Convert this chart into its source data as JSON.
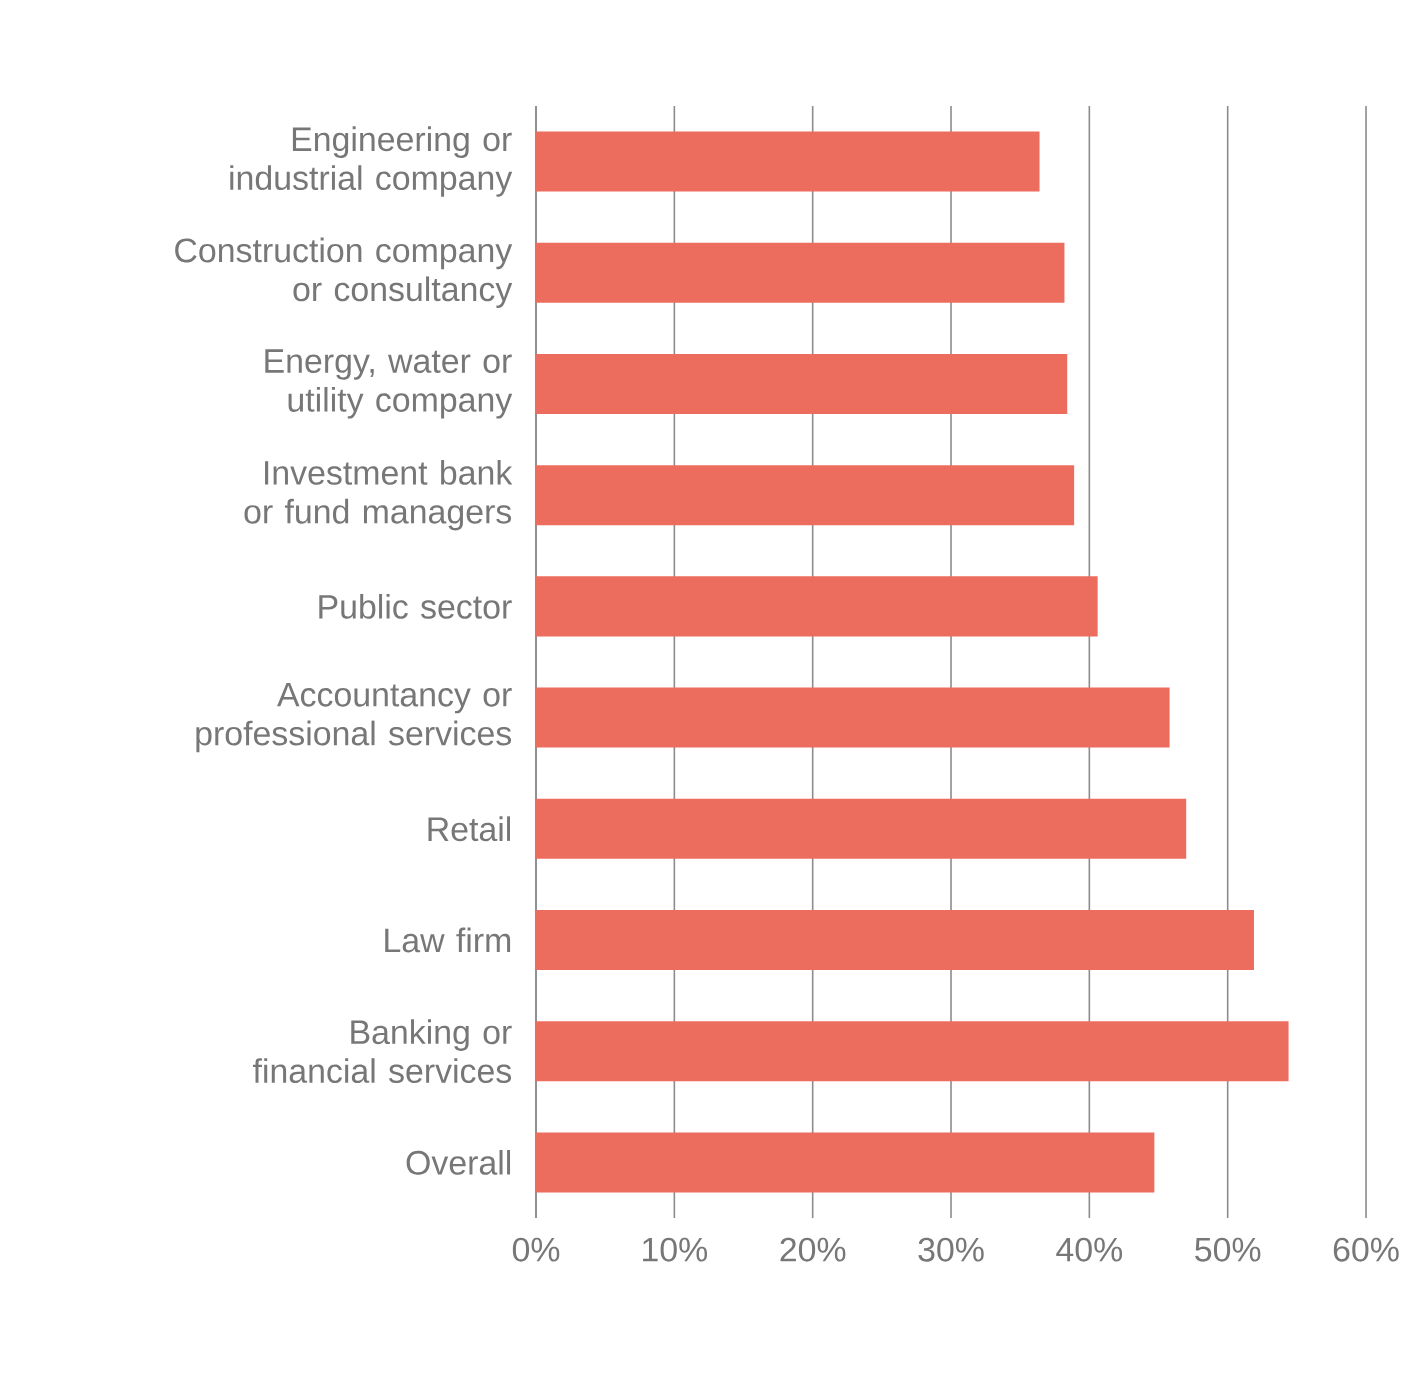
{
  "chart_data": {
    "type": "bar",
    "orientation": "horizontal",
    "categories": [
      "Engineering or industrial company",
      "Construction company or consultancy",
      "Energy, water or utility company",
      "Investment bank or fund managers",
      "Public sector",
      "Accountancy or professional services",
      "Retail",
      "Law firm",
      "Banking or financial services",
      "Overall"
    ],
    "values": [
      36.4,
      38.2,
      38.4,
      38.9,
      40.6,
      45.8,
      47.0,
      51.9,
      54.4,
      44.7
    ],
    "color": "#ec6d5e",
    "xlim": [
      0,
      60
    ],
    "xticks": [
      {
        "value": 0,
        "label": "0%"
      },
      {
        "value": 10,
        "label": "10%"
      },
      {
        "value": 20,
        "label": "20%"
      },
      {
        "value": 30,
        "label": "30%"
      },
      {
        "value": 40,
        "label": "40%"
      },
      {
        "value": 50,
        "label": "50%"
      },
      {
        "value": 60,
        "label": "60%"
      }
    ],
    "grid": "x"
  }
}
